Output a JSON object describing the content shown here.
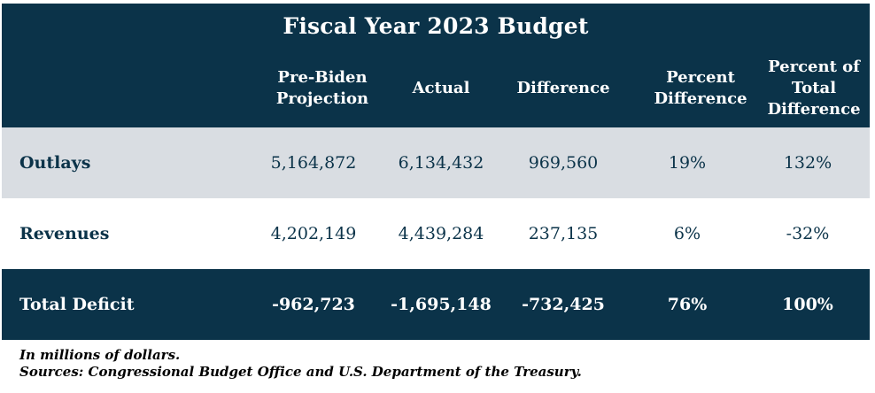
{
  "chart_data": {
    "type": "table",
    "title": "Fiscal Year 2023 Budget",
    "columns": [
      "Pre-Biden\nProjection",
      "Actual",
      "Difference",
      "Percent\nDifference",
      "Percent of\nTotal\nDifference"
    ],
    "rows": [
      {
        "label": "Outlays",
        "values": [
          "5,164,872",
          "6,134,432",
          "969,560",
          "19%",
          "132%"
        ]
      },
      {
        "label": "Revenues",
        "values": [
          "4,202,149",
          "4,439,284",
          "237,135",
          "6%",
          "-32%"
        ]
      },
      {
        "label": "Total Deficit",
        "values": [
          "-962,723",
          "-1,695,148",
          "-732,425",
          "76%",
          "100%"
        ]
      }
    ],
    "notes": [
      "In millions of dollars.",
      "Sources: Congressional Budget Office and U.S. Department of the Treasury."
    ],
    "colors": {
      "header_bg": "#0b3349",
      "shade_row": "#d9dde2",
      "text_dark": "#0b3349"
    }
  }
}
